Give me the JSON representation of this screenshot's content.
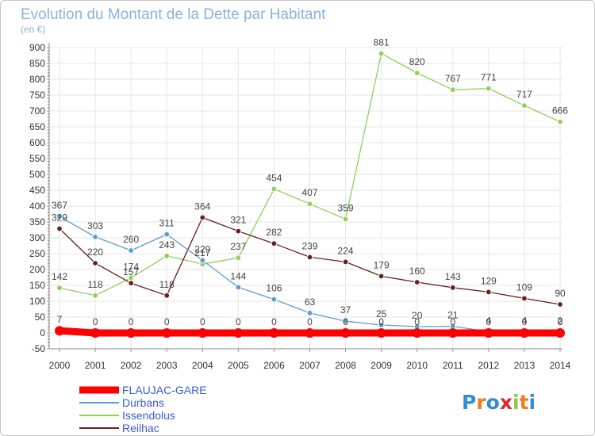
{
  "chart_data": {
    "type": "line",
    "title": "Evolution du Montant de la Dette par Habitant",
    "subtitle": "(en €)",
    "x": [
      "2000",
      "2001",
      "2002",
      "2003",
      "2004",
      "2005",
      "2006",
      "2007",
      "2008",
      "2009",
      "2010",
      "2011",
      "2012",
      "2013",
      "2014"
    ],
    "ylim": [
      -50,
      900
    ],
    "yticks": [
      -50,
      0,
      50,
      100,
      150,
      200,
      250,
      300,
      350,
      400,
      450,
      500,
      550,
      600,
      650,
      700,
      750,
      800,
      850,
      900
    ],
    "grid": true,
    "legend_position": "bottom-left",
    "series": [
      {
        "name": "FLAUJAC-GARE",
        "color": "#ff0000",
        "thick": true,
        "values": [
          7,
          0,
          0,
          0,
          0,
          0,
          0,
          0,
          0,
          0,
          0,
          0,
          0,
          0,
          0
        ],
        "labels": [
          "7",
          "0",
          "0",
          "0",
          "0",
          "0",
          "0",
          "0",
          "0",
          "0",
          "0",
          "0",
          "0",
          "0",
          "0"
        ]
      },
      {
        "name": "Durbans",
        "color": "#5b9bd5",
        "values": [
          367,
          303,
          260,
          311,
          229,
          144,
          106,
          63,
          37,
          25,
          20,
          21,
          4,
          4,
          2
        ],
        "labels": [
          "367",
          "303",
          "260",
          "311",
          "229",
          "144",
          "106",
          "63",
          "37",
          "25",
          "20",
          "21",
          "4",
          "4",
          "2"
        ]
      },
      {
        "name": "Issendolus",
        "color": "#8ed05a",
        "values": [
          142,
          118,
          174,
          243,
          217,
          237,
          454,
          407,
          359,
          881,
          820,
          767,
          771,
          717,
          666
        ],
        "labels": [
          "142",
          "118",
          "174",
          "243",
          "217",
          "237",
          "454",
          "407",
          "359",
          "881",
          "820",
          "767",
          "771",
          "717",
          "666"
        ]
      },
      {
        "name": "Reilhac",
        "color": "#6b1f1f",
        "values": [
          329,
          220,
          157,
          118,
          364,
          321,
          282,
          239,
          224,
          179,
          160,
          143,
          129,
          109,
          90
        ],
        "labels": [
          "329",
          "220",
          "157",
          "118",
          "364",
          "321",
          "282",
          "239",
          "224",
          "179",
          "160",
          "143",
          "129",
          "109",
          "90"
        ]
      }
    ]
  },
  "logo": {
    "text": "Proxiti",
    "letter_colors": [
      "#2f8fd6",
      "#f07d1a",
      "#2f8fd6",
      "#d9282f",
      "#8dc63f",
      "#f07d1a",
      "#2f8fd6"
    ]
  }
}
